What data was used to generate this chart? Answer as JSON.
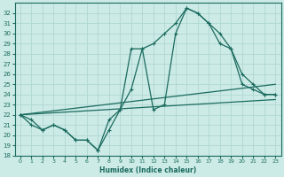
{
  "xlabel": "Humidex (Indice chaleur)",
  "bg_color": "#cceae6",
  "line_color": "#1a6b5e",
  "grid_color": "#b0d8d2",
  "ylim": [
    18,
    33
  ],
  "xlim": [
    -0.5,
    23.5
  ],
  "yticks": [
    18,
    19,
    20,
    21,
    22,
    23,
    24,
    25,
    26,
    27,
    28,
    29,
    30,
    31,
    32
  ],
  "xticks": [
    0,
    1,
    2,
    3,
    4,
    5,
    6,
    7,
    8,
    9,
    10,
    11,
    12,
    13,
    14,
    15,
    16,
    17,
    18,
    19,
    20,
    21,
    22,
    23
  ],
  "line1_x": [
    0,
    1,
    2,
    3,
    4,
    5,
    6,
    7,
    8,
    9,
    10,
    11,
    12,
    13,
    14,
    15,
    16,
    17,
    18,
    19,
    20,
    21,
    22,
    23
  ],
  "line1_y": [
    22.0,
    21.5,
    20.5,
    21.0,
    20.5,
    19.5,
    19.5,
    18.5,
    20.5,
    22.5,
    28.5,
    28.5,
    22.5,
    23.0,
    30.0,
    32.5,
    32.0,
    31.0,
    30.0,
    28.5,
    25.0,
    24.5,
    24.0,
    24.0
  ],
  "line2_x": [
    0,
    1,
    2,
    3,
    4,
    5,
    6,
    7,
    8,
    9,
    10,
    11,
    12,
    13,
    14,
    15,
    16,
    17,
    18,
    19,
    20,
    21,
    22,
    23
  ],
  "line2_y": [
    22.0,
    21.0,
    20.5,
    21.0,
    20.5,
    19.5,
    19.5,
    18.5,
    21.5,
    22.5,
    24.5,
    28.5,
    29.0,
    30.0,
    31.0,
    32.5,
    32.0,
    31.0,
    29.0,
    28.5,
    26.0,
    25.0,
    24.0,
    24.0
  ],
  "line3_x": [
    0,
    23
  ],
  "line3_y": [
    22.0,
    25.0
  ],
  "line4_x": [
    0,
    23
  ],
  "line4_y": [
    22.0,
    23.5
  ]
}
